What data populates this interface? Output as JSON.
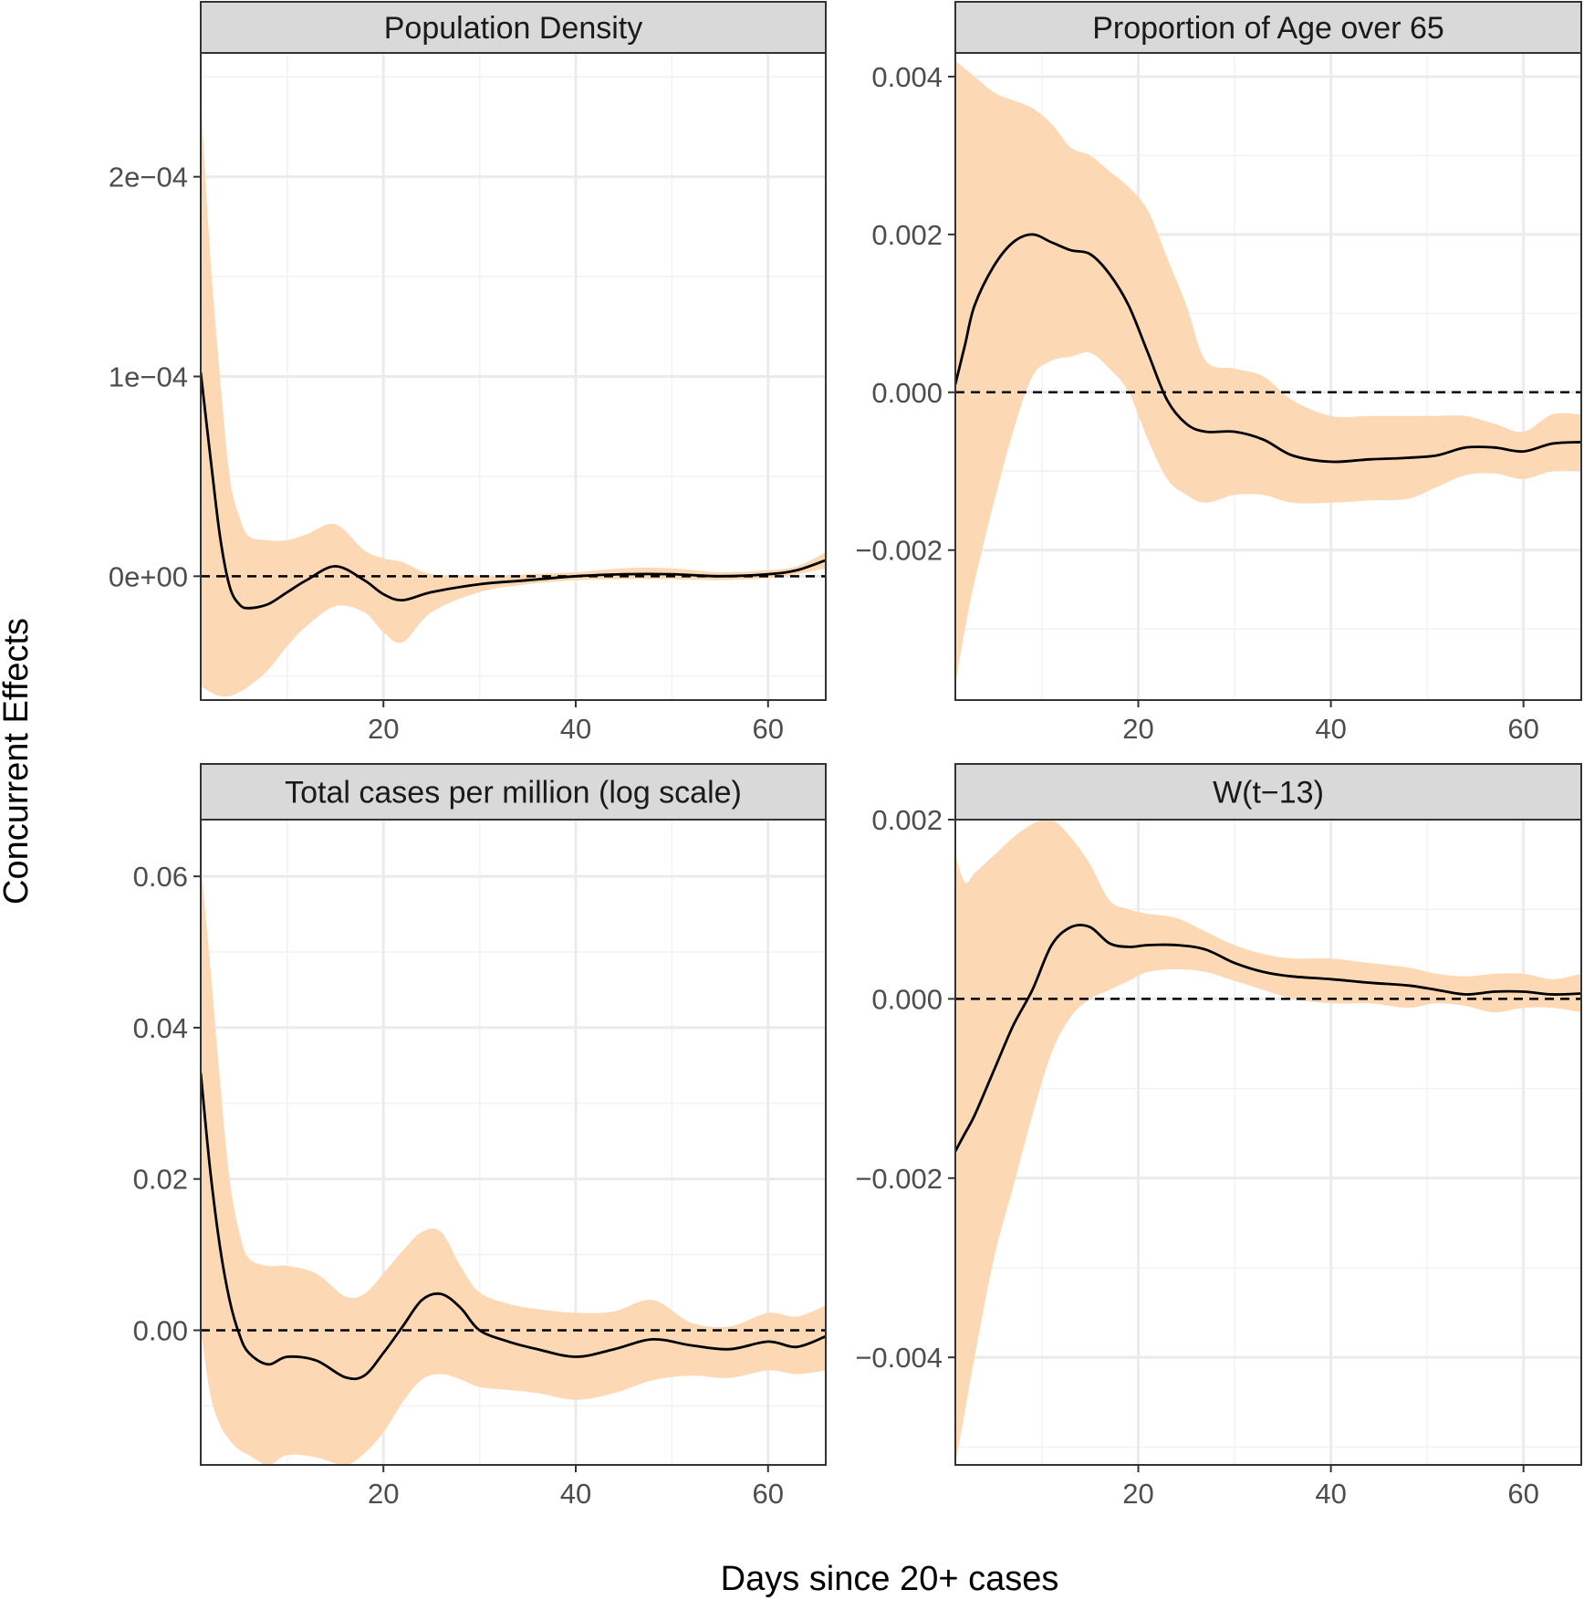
{
  "figure": {
    "ylabel": "Concurrent Effects",
    "xlabel": "Days since 20+ cases"
  },
  "colors": {
    "ribbon": "#fdd8b5",
    "line": "#000000",
    "zero_line": "#000000",
    "grid_major": "#ebebeb",
    "grid_minor": "#f2f2f2",
    "strip_fill": "#d9d9d9",
    "panel_border": "#333333"
  },
  "chart_data": [
    {
      "type": "line",
      "title": "Population Density",
      "xlabel": "Days since 20+ cases",
      "ylabel": "Concurrent Effects",
      "xlim": [
        1,
        66
      ],
      "ylim": [
        -6.2e-05,
        0.000262
      ],
      "xticks": [
        20,
        40,
        60
      ],
      "yticks": [
        0,
        0.0001,
        0.0002
      ],
      "ytick_labels": [
        "0e+00",
        "1e−04",
        "2e−04"
      ],
      "zero_line": true,
      "series": [
        {
          "name": "estimate",
          "x": [
            1,
            2,
            3,
            4,
            5,
            6,
            8,
            10,
            12,
            15,
            18,
            20,
            22,
            25,
            30,
            35,
            40,
            45,
            50,
            55,
            60,
            63,
            66
          ],
          "y": [
            0.000102,
            6e-05,
            2e-05,
            -5e-06,
            -1.4e-05,
            -1.6e-05,
            -1.4e-05,
            -8e-06,
            -2e-06,
            5e-06,
            -2e-06,
            -9e-06,
            -1.2e-05,
            -8e-06,
            -4e-06,
            -2e-06,
            0,
            1e-06,
            1e-06,
            0,
            1e-06,
            3e-06,
            8e-06
          ],
          "lower": [
            -5.5e-05,
            -5.8e-05,
            -6e-05,
            -6e-05,
            -5.8e-05,
            -5.5e-05,
            -4.7e-05,
            -3.5e-05,
            -2.5e-05,
            -1.5e-05,
            -1.8e-05,
            -2.8e-05,
            -3.3e-05,
            -1.8e-05,
            -8e-06,
            -4e-06,
            -2e-06,
            -1.5e-06,
            -1.5e-06,
            -2e-06,
            -1e-06,
            1e-06,
            4e-06
          ],
          "upper": [
            0.00024,
            0.00016,
            0.0001,
            5e-05,
            3e-05,
            2e-05,
            1.8e-05,
            1.8e-05,
            2.1e-05,
            2.6e-05,
            1.3e-05,
            9e-06,
            7e-06,
            1e-06,
            0,
            1e-06,
            2e-06,
            4e-06,
            4e-06,
            2e-06,
            3e-06,
            5e-06,
            1.2e-05
          ]
        }
      ]
    },
    {
      "type": "line",
      "title": "Proportion of Age over 65",
      "xlabel": "Days since 20+ cases",
      "ylabel": "Concurrent Effects",
      "xlim": [
        1,
        66
      ],
      "ylim": [
        -0.0039,
        0.0043
      ],
      "xticks": [
        20,
        40,
        60
      ],
      "yticks": [
        -0.002,
        0,
        0.002,
        0.004
      ],
      "ytick_labels": [
        "−0.002",
        "0.000",
        "0.002",
        "0.004"
      ],
      "zero_line": true,
      "series": [
        {
          "name": "estimate",
          "x": [
            1,
            2,
            3,
            5,
            7,
            9,
            11,
            13,
            15,
            17,
            19,
            21,
            23,
            25,
            27,
            30,
            33,
            36,
            40,
            44,
            48,
            51,
            54,
            57,
            60,
            63,
            66
          ],
          "y": [
            0.0001,
            0.0006,
            0.0011,
            0.0016,
            0.0019,
            0.002,
            0.0019,
            0.0018,
            0.00175,
            0.0015,
            0.0011,
            0.0005,
            -0.0001,
            -0.0004,
            -0.0005,
            -0.0005,
            -0.0006,
            -0.0008,
            -0.00088,
            -0.00085,
            -0.00083,
            -0.0008,
            -0.0007,
            -0.0007,
            -0.00075,
            -0.00065,
            -0.00063
          ],
          "lower": [
            -0.0037,
            -0.003,
            -0.0024,
            -0.0014,
            -0.0005,
            0.0002,
            0.0004,
            0.00045,
            0.0005,
            0.0003,
            0.0,
            -0.0006,
            -0.0011,
            -0.0013,
            -0.0014,
            -0.0013,
            -0.0013,
            -0.0014,
            -0.0014,
            -0.00137,
            -0.00135,
            -0.0012,
            -0.00105,
            -0.00103,
            -0.0011,
            -0.001,
            -0.001
          ],
          "upper": [
            0.0042,
            0.0041,
            0.004,
            0.0038,
            0.0037,
            0.0036,
            0.0034,
            0.0031,
            0.003,
            0.0028,
            0.0026,
            0.0023,
            0.0017,
            0.0011,
            0.0004,
            0.0003,
            0.0002,
            -0.0001,
            -0.0003,
            -0.0003,
            -0.0003,
            -0.0003,
            -0.0003,
            -0.0004,
            -0.0005,
            -0.00028,
            -0.00028
          ]
        }
      ]
    },
    {
      "type": "line",
      "title": "Total cases per million (log scale)",
      "xlabel": "Days since 20+ cases",
      "ylabel": "Concurrent Effects",
      "xlim": [
        1,
        66
      ],
      "ylim": [
        -0.0178,
        0.0675
      ],
      "xticks": [
        20,
        40,
        60
      ],
      "yticks": [
        0,
        0.02,
        0.04,
        0.06
      ],
      "ytick_labels": [
        "0.00",
        "0.02",
        "0.04",
        "0.06"
      ],
      "zero_line": true,
      "series": [
        {
          "name": "estimate",
          "x": [
            1,
            2,
            3,
            4,
            5,
            6,
            8,
            10,
            13,
            16,
            18,
            20,
            22,
            24,
            26,
            28,
            30,
            33,
            36,
            40,
            44,
            48,
            52,
            56,
            60,
            63,
            66
          ],
          "y": [
            0.034,
            0.021,
            0.011,
            0.004,
            -0.0005,
            -0.003,
            -0.0045,
            -0.0035,
            -0.004,
            -0.0062,
            -0.006,
            -0.003,
            0.0005,
            0.004,
            0.0048,
            0.003,
            0.0,
            -0.0015,
            -0.0025,
            -0.0035,
            -0.0025,
            -0.0012,
            -0.002,
            -0.0025,
            -0.0015,
            -0.0022,
            -0.0008
          ],
          "lower": [
            0.0,
            -0.0085,
            -0.0125,
            -0.0145,
            -0.0158,
            -0.0165,
            -0.0178,
            -0.0165,
            -0.0168,
            -0.0178,
            -0.0163,
            -0.0135,
            -0.0095,
            -0.0065,
            -0.0058,
            -0.0065,
            -0.0075,
            -0.0079,
            -0.0083,
            -0.0092,
            -0.0083,
            -0.0066,
            -0.006,
            -0.0063,
            -0.0053,
            -0.0058,
            -0.0053
          ],
          "upper": [
            0.062,
            0.048,
            0.033,
            0.02,
            0.013,
            0.0095,
            0.0085,
            0.0085,
            0.0075,
            0.0045,
            0.0048,
            0.0075,
            0.0105,
            0.013,
            0.013,
            0.0085,
            0.005,
            0.0035,
            0.0028,
            0.0023,
            0.0025,
            0.004,
            0.001,
            0.0005,
            0.0023,
            0.0018,
            0.0033
          ]
        }
      ]
    },
    {
      "type": "line",
      "title": "W(t−13)",
      "xlabel": "Days since 20+ cases",
      "ylabel": "Concurrent Effects",
      "xlim": [
        1,
        66
      ],
      "ylim": [
        -0.0052,
        0.002
      ],
      "xticks": [
        20,
        40,
        60
      ],
      "yticks": [
        -0.004,
        -0.002,
        0,
        0.002
      ],
      "ytick_labels": [
        "−0.004",
        "−0.002",
        "0.000",
        "0.002"
      ],
      "zero_line": true,
      "series": [
        {
          "name": "estimate",
          "x": [
            1,
            2,
            3,
            5,
            7,
            9,
            11,
            13,
            15,
            17,
            19,
            21,
            24,
            27,
            30,
            33,
            36,
            40,
            44,
            48,
            51,
            54,
            57,
            60,
            63,
            66
          ],
          "y": [
            -0.0017,
            -0.0015,
            -0.0013,
            -0.0008,
            -0.0003,
            0.0001,
            0.0006,
            0.0008,
            0.0008,
            0.00062,
            0.00058,
            0.0006,
            0.0006,
            0.00055,
            0.0004,
            0.0003,
            0.00025,
            0.00022,
            0.00018,
            0.00015,
            0.0001,
            5e-05,
            8e-05,
            8e-05,
            5e-05,
            6e-05
          ],
          "lower": [
            -0.0052,
            -0.0046,
            -0.004,
            -0.0029,
            -0.0021,
            -0.0013,
            -0.0006,
            -0.0002,
            0.0,
            0.0001,
            0.0002,
            0.0003,
            0.00033,
            0.0003,
            0.0002,
            0.0001,
            0.0,
            -5e-05,
            -5e-05,
            -0.0001,
            -5e-05,
            -8e-05,
            -0.00015,
            -0.0001,
            -0.0001,
            -0.00015
          ],
          "upper": [
            0.0016,
            0.0013,
            0.0014,
            0.0016,
            0.0018,
            0.00195,
            0.002,
            0.0018,
            0.0015,
            0.0011,
            0.001,
            0.00095,
            0.0009,
            0.00075,
            0.0006,
            0.0005,
            0.00045,
            0.00045,
            0.0004,
            0.00035,
            0.00028,
            0.00025,
            0.00028,
            0.00028,
            0.00022,
            0.00028
          ]
        }
      ]
    }
  ]
}
